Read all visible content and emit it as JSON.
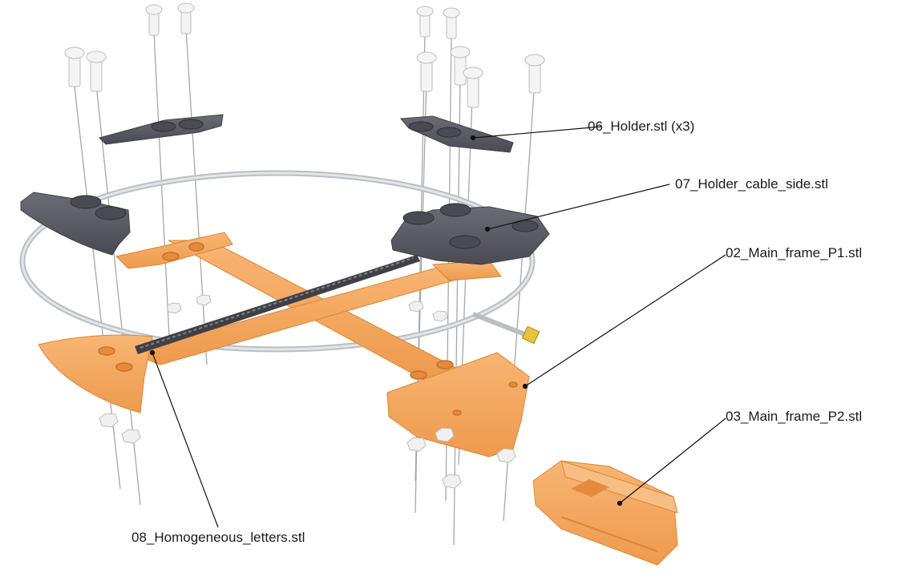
{
  "labels": {
    "holder": "06_Holder.stl (x3)",
    "holder_cable_side": "07_Holder_cable_side.stl",
    "main_frame_p1": "02_Main_frame_P1.stl",
    "main_frame_p2": "03_Main_frame_P2.stl",
    "homogeneous_letters": "08_Homogeneous_letters.stl"
  },
  "colors": {
    "frame_orange": "#f5a55a",
    "frame_shade": "#e08b3e",
    "holder_grey": "#5a5b62",
    "holder_dark": "#3f4046",
    "ring_grey": "#c9cdd2",
    "screw_white": "#f4f4f4",
    "nut_white": "#eeeeee",
    "connector_gold": "#e8c33c",
    "leader_black": "#111111"
  }
}
